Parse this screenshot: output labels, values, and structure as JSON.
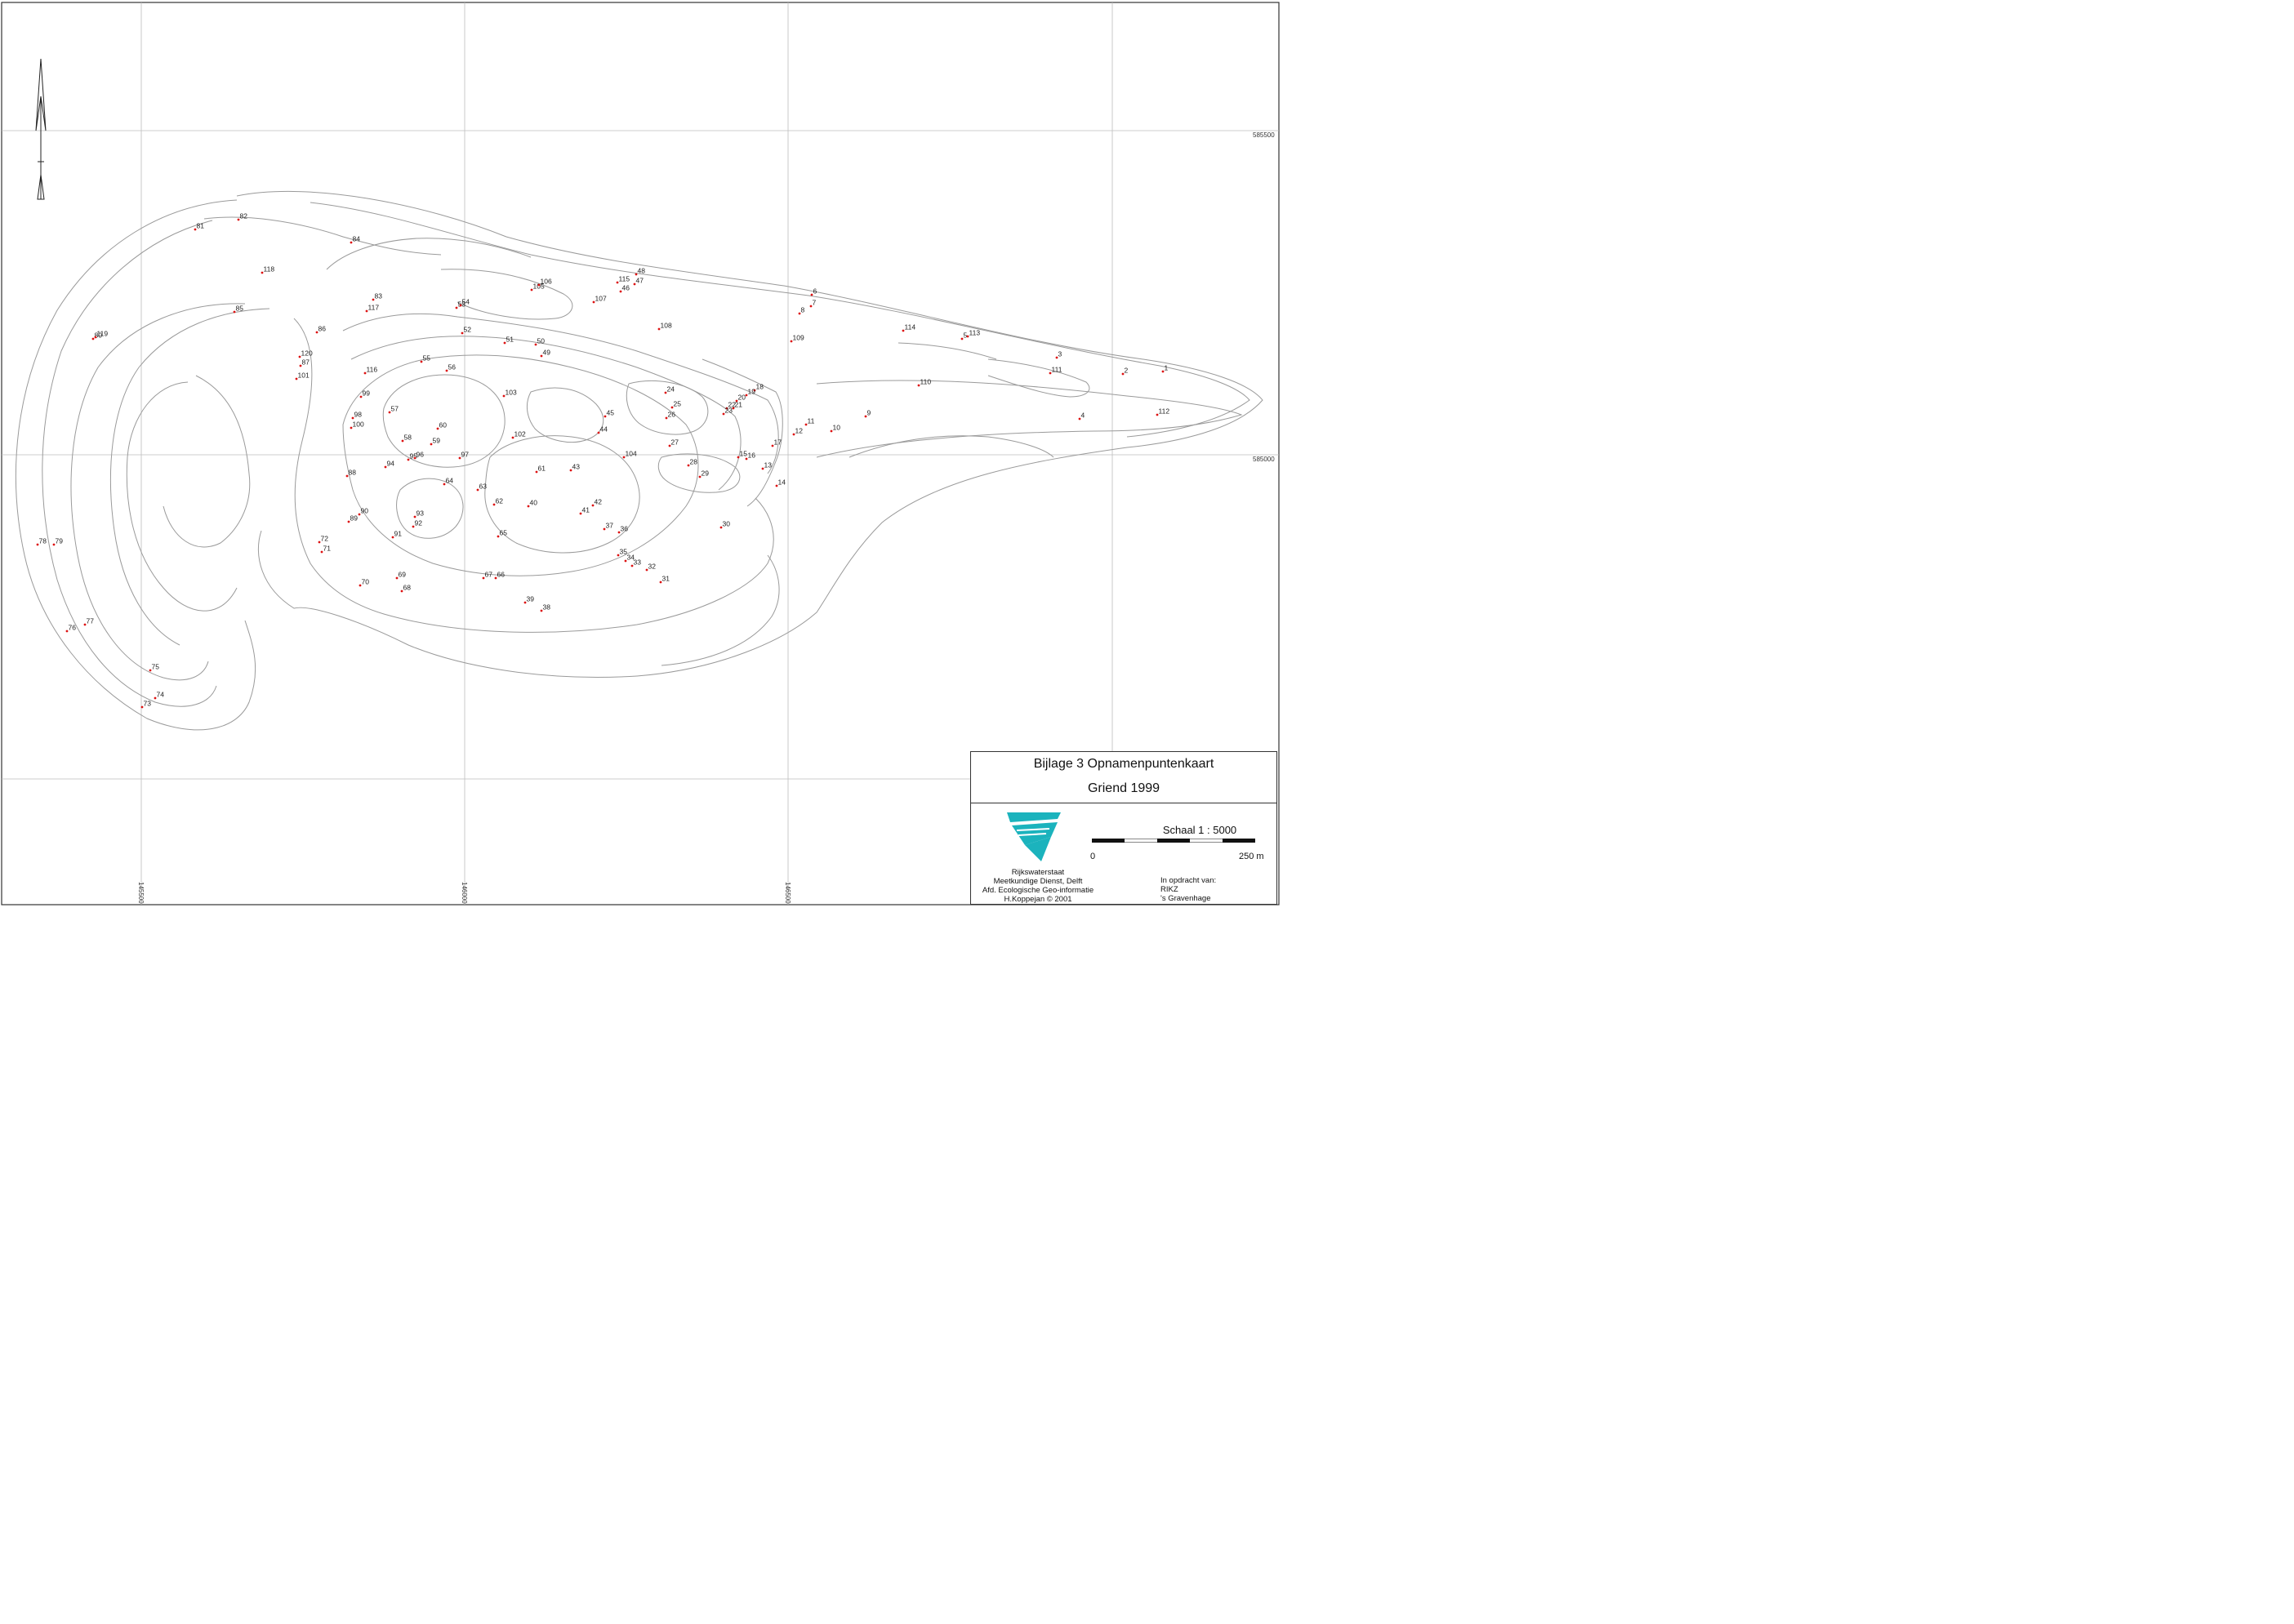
{
  "legend": {
    "title": "Bijlage 3 Opnamenpuntenkaart",
    "subtitle": "Griend 1999",
    "scale_text": "Schaal 1 : 5000",
    "scale_start": "0",
    "scale_end": "250 m",
    "org_lines": [
      "Rijkswaterstaat",
      "Meetkundige Dienst, Delft",
      "Afd. Ecologische Geo-informatie",
      "H.Koppejan © 2001"
    ],
    "client_lines": [
      "In opdracht van:",
      "RIKZ",
      "'s Gravenhage"
    ]
  },
  "grid_labels": {
    "y_top": "585500",
    "y_mid": "585000",
    "x1": "145500",
    "x2": "146000",
    "x3": "146500"
  },
  "colors": {
    "point": "#d11111",
    "contour": "#9a9a9a",
    "logo": "#1bb3bd"
  },
  "icons": {
    "north_arrow": "north-arrow-icon",
    "logo": "rijkswaterstaat-logo"
  },
  "points": [
    [
      "1",
      1424,
      455
    ],
    [
      "2",
      1375,
      458
    ],
    [
      "3",
      1294,
      438
    ],
    [
      "4",
      1322,
      513
    ],
    [
      "5",
      1178,
      415
    ],
    [
      "6",
      994,
      361
    ],
    [
      "7",
      993,
      375
    ],
    [
      "8",
      979,
      384
    ],
    [
      "9",
      1060,
      510
    ],
    [
      "10",
      1018,
      528
    ],
    [
      "11",
      987,
      520
    ],
    [
      "12",
      972,
      532
    ],
    [
      "13",
      934,
      574
    ],
    [
      "14",
      951,
      595
    ],
    [
      "15",
      904,
      560
    ],
    [
      "16",
      914,
      562
    ],
    [
      "17",
      946,
      546
    ],
    [
      "18",
      924,
      478
    ],
    [
      "19",
      914,
      484
    ],
    [
      "20",
      902,
      491
    ],
    [
      "21",
      898,
      500
    ],
    [
      "22",
      890,
      500
    ],
    [
      "23",
      886,
      507
    ],
    [
      "24",
      815,
      481
    ],
    [
      "25",
      823,
      499
    ],
    [
      "26",
      816,
      512
    ],
    [
      "27",
      820,
      546
    ],
    [
      "28",
      843,
      570
    ],
    [
      "29",
      857,
      584
    ],
    [
      "30",
      883,
      646
    ],
    [
      "31",
      809,
      713
    ],
    [
      "32",
      792,
      698
    ],
    [
      "33",
      774,
      693
    ],
    [
      "34",
      766,
      687
    ],
    [
      "35",
      757,
      680
    ],
    [
      "36",
      758,
      652
    ],
    [
      "37",
      740,
      648
    ],
    [
      "38",
      663,
      748
    ],
    [
      "39",
      643,
      738
    ],
    [
      "40",
      647,
      620
    ],
    [
      "41",
      711,
      629
    ],
    [
      "42",
      726,
      619
    ],
    [
      "43",
      699,
      576
    ],
    [
      "44",
      733,
      530
    ],
    [
      "45",
      741,
      510
    ],
    [
      "46",
      760,
      357
    ],
    [
      "47",
      777,
      348
    ],
    [
      "48",
      779,
      336
    ],
    [
      "49",
      663,
      436
    ],
    [
      "50",
      656,
      422
    ],
    [
      "51",
      618,
      420
    ],
    [
      "52",
      566,
      408
    ],
    [
      "53",
      559,
      377
    ],
    [
      "54",
      564,
      374
    ],
    [
      "55",
      516,
      443
    ],
    [
      "56",
      547,
      454
    ],
    [
      "57",
      477,
      505
    ],
    [
      "58",
      493,
      540
    ],
    [
      "59",
      528,
      544
    ],
    [
      "60",
      536,
      525
    ],
    [
      "61",
      657,
      578
    ],
    [
      "62",
      605,
      618
    ],
    [
      "63",
      585,
      600
    ],
    [
      "64",
      544,
      593
    ],
    [
      "65",
      610,
      657
    ],
    [
      "66",
      607,
      708
    ],
    [
      "67",
      592,
      708
    ],
    [
      "68",
      492,
      724
    ],
    [
      "69",
      486,
      708
    ],
    [
      "70",
      441,
      717
    ],
    [
      "71",
      394,
      676
    ],
    [
      "72",
      391,
      664
    ],
    [
      "73",
      174,
      866
    ],
    [
      "74",
      190,
      855
    ],
    [
      "75",
      184,
      821
    ],
    [
      "76",
      82,
      773
    ],
    [
      "77",
      104,
      765
    ],
    [
      "78",
      46,
      667
    ],
    [
      "79",
      66,
      667
    ],
    [
      "80",
      114,
      415
    ],
    [
      "81",
      239,
      281
    ],
    [
      "82",
      292,
      269
    ],
    [
      "83",
      457,
      367
    ],
    [
      "84",
      430,
      297
    ],
    [
      "85",
      287,
      382
    ],
    [
      "86",
      388,
      407
    ],
    [
      "87",
      368,
      448
    ],
    [
      "88",
      425,
      583
    ],
    [
      "89",
      427,
      639
    ],
    [
      "90",
      440,
      630
    ],
    [
      "91",
      481,
      658
    ],
    [
      "92",
      506,
      645
    ],
    [
      "93",
      508,
      633
    ],
    [
      "94",
      472,
      572
    ],
    [
      "95",
      500,
      563
    ],
    [
      "96",
      508,
      561
    ],
    [
      "97",
      563,
      561
    ],
    [
      "98",
      432,
      512
    ],
    [
      "99",
      442,
      486
    ],
    [
      "100",
      430,
      524
    ],
    [
      "101",
      363,
      464
    ],
    [
      "102",
      628,
      536
    ],
    [
      "103",
      617,
      485
    ],
    [
      "104",
      764,
      560
    ],
    [
      "105",
      651,
      355
    ],
    [
      "106",
      660,
      349
    ],
    [
      "107",
      727,
      370
    ],
    [
      "108",
      807,
      403
    ],
    [
      "109",
      969,
      418
    ],
    [
      "110",
      1125,
      472
    ],
    [
      "111",
      1286,
      457
    ],
    [
      "112",
      1417,
      508
    ],
    [
      "113",
      1185,
      412
    ],
    [
      "114",
      1106,
      405
    ],
    [
      "115",
      756,
      346
    ],
    [
      "116",
      447,
      457
    ],
    [
      "117",
      449,
      381
    ],
    [
      "118",
      321,
      334
    ],
    [
      "119",
      117,
      413
    ],
    [
      "120",
      367,
      437
    ]
  ]
}
